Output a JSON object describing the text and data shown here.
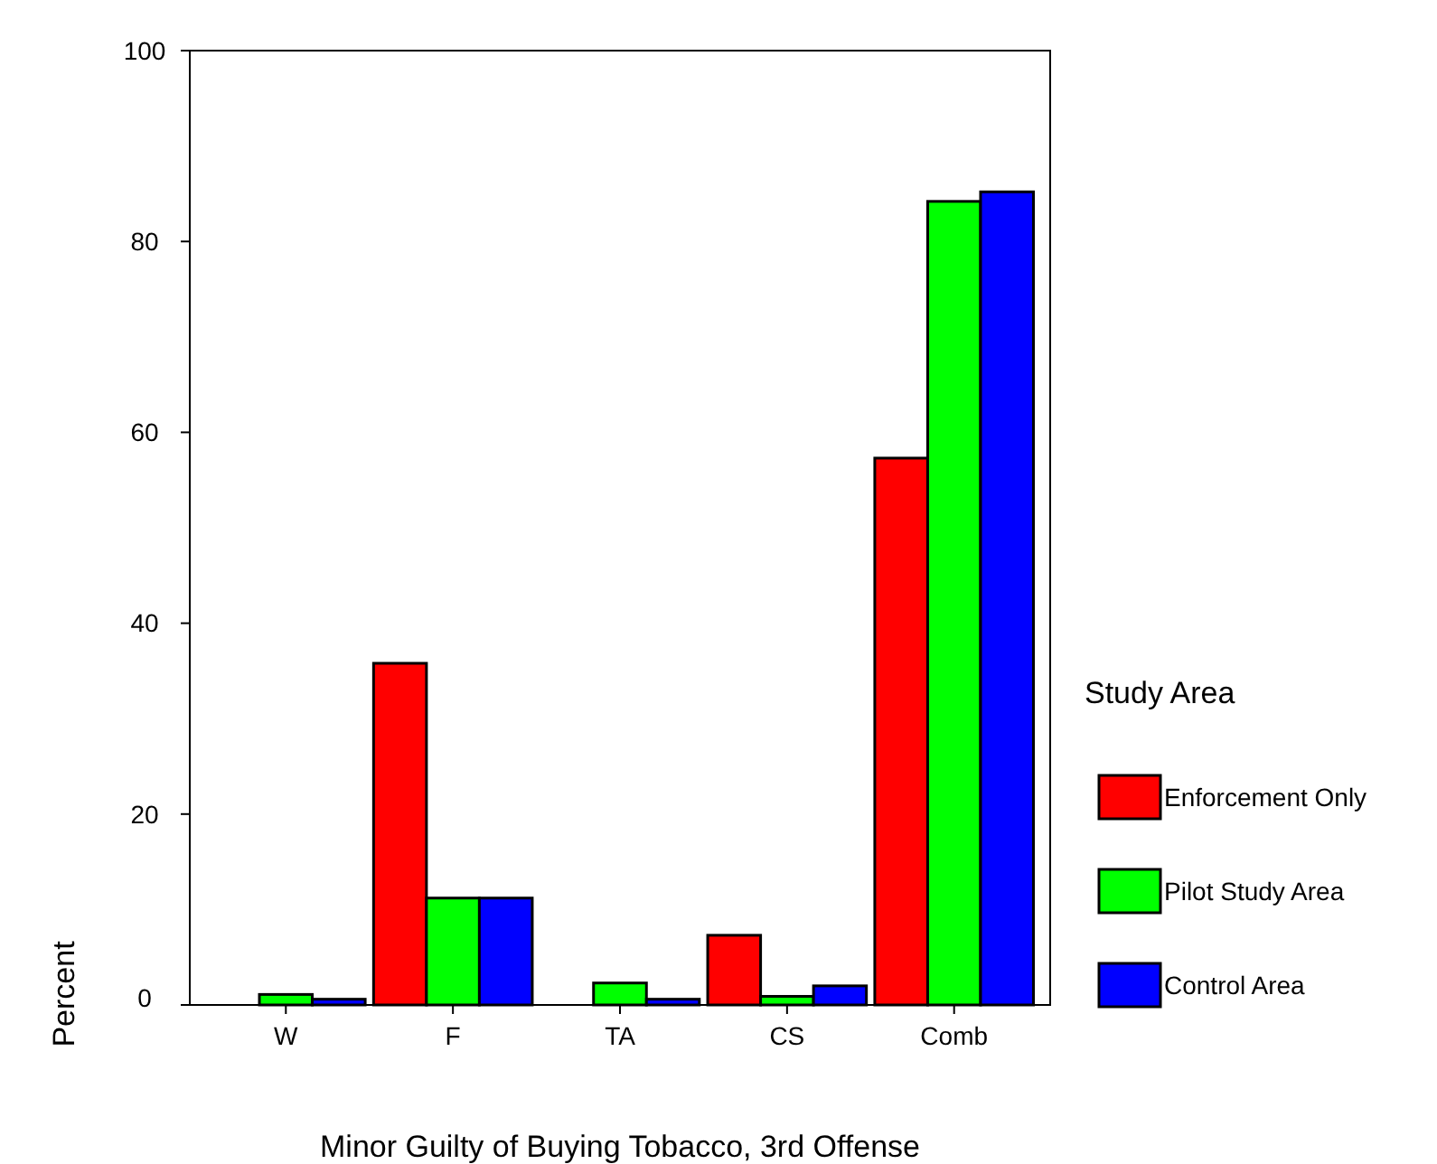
{
  "chart_data": {
    "type": "bar",
    "xlabel": "Minor Guilty of Buying Tobacco, 3rd Offense",
    "ylabel": "Percent",
    "legend_title": "Study Area",
    "categories": [
      "W",
      "F",
      "TA",
      "CS",
      "Comb"
    ],
    "series": [
      {
        "name": "Enforcement Only",
        "color": "#ff0000",
        "values": [
          0,
          35.8,
          0,
          7.3,
          57.3
        ]
      },
      {
        "name": "Pilot Study Area",
        "color": "#00ff00",
        "values": [
          1.1,
          11.2,
          2.3,
          0.9,
          84.2
        ]
      },
      {
        "name": "Control Area",
        "color": "#0000ff",
        "values": [
          0.6,
          11.2,
          0.6,
          2.0,
          85.2
        ]
      }
    ],
    "ylim": [
      0,
      100
    ],
    "yticks": [
      0,
      20,
      40,
      60,
      80,
      100
    ],
    "grid": false,
    "legend": "right"
  }
}
